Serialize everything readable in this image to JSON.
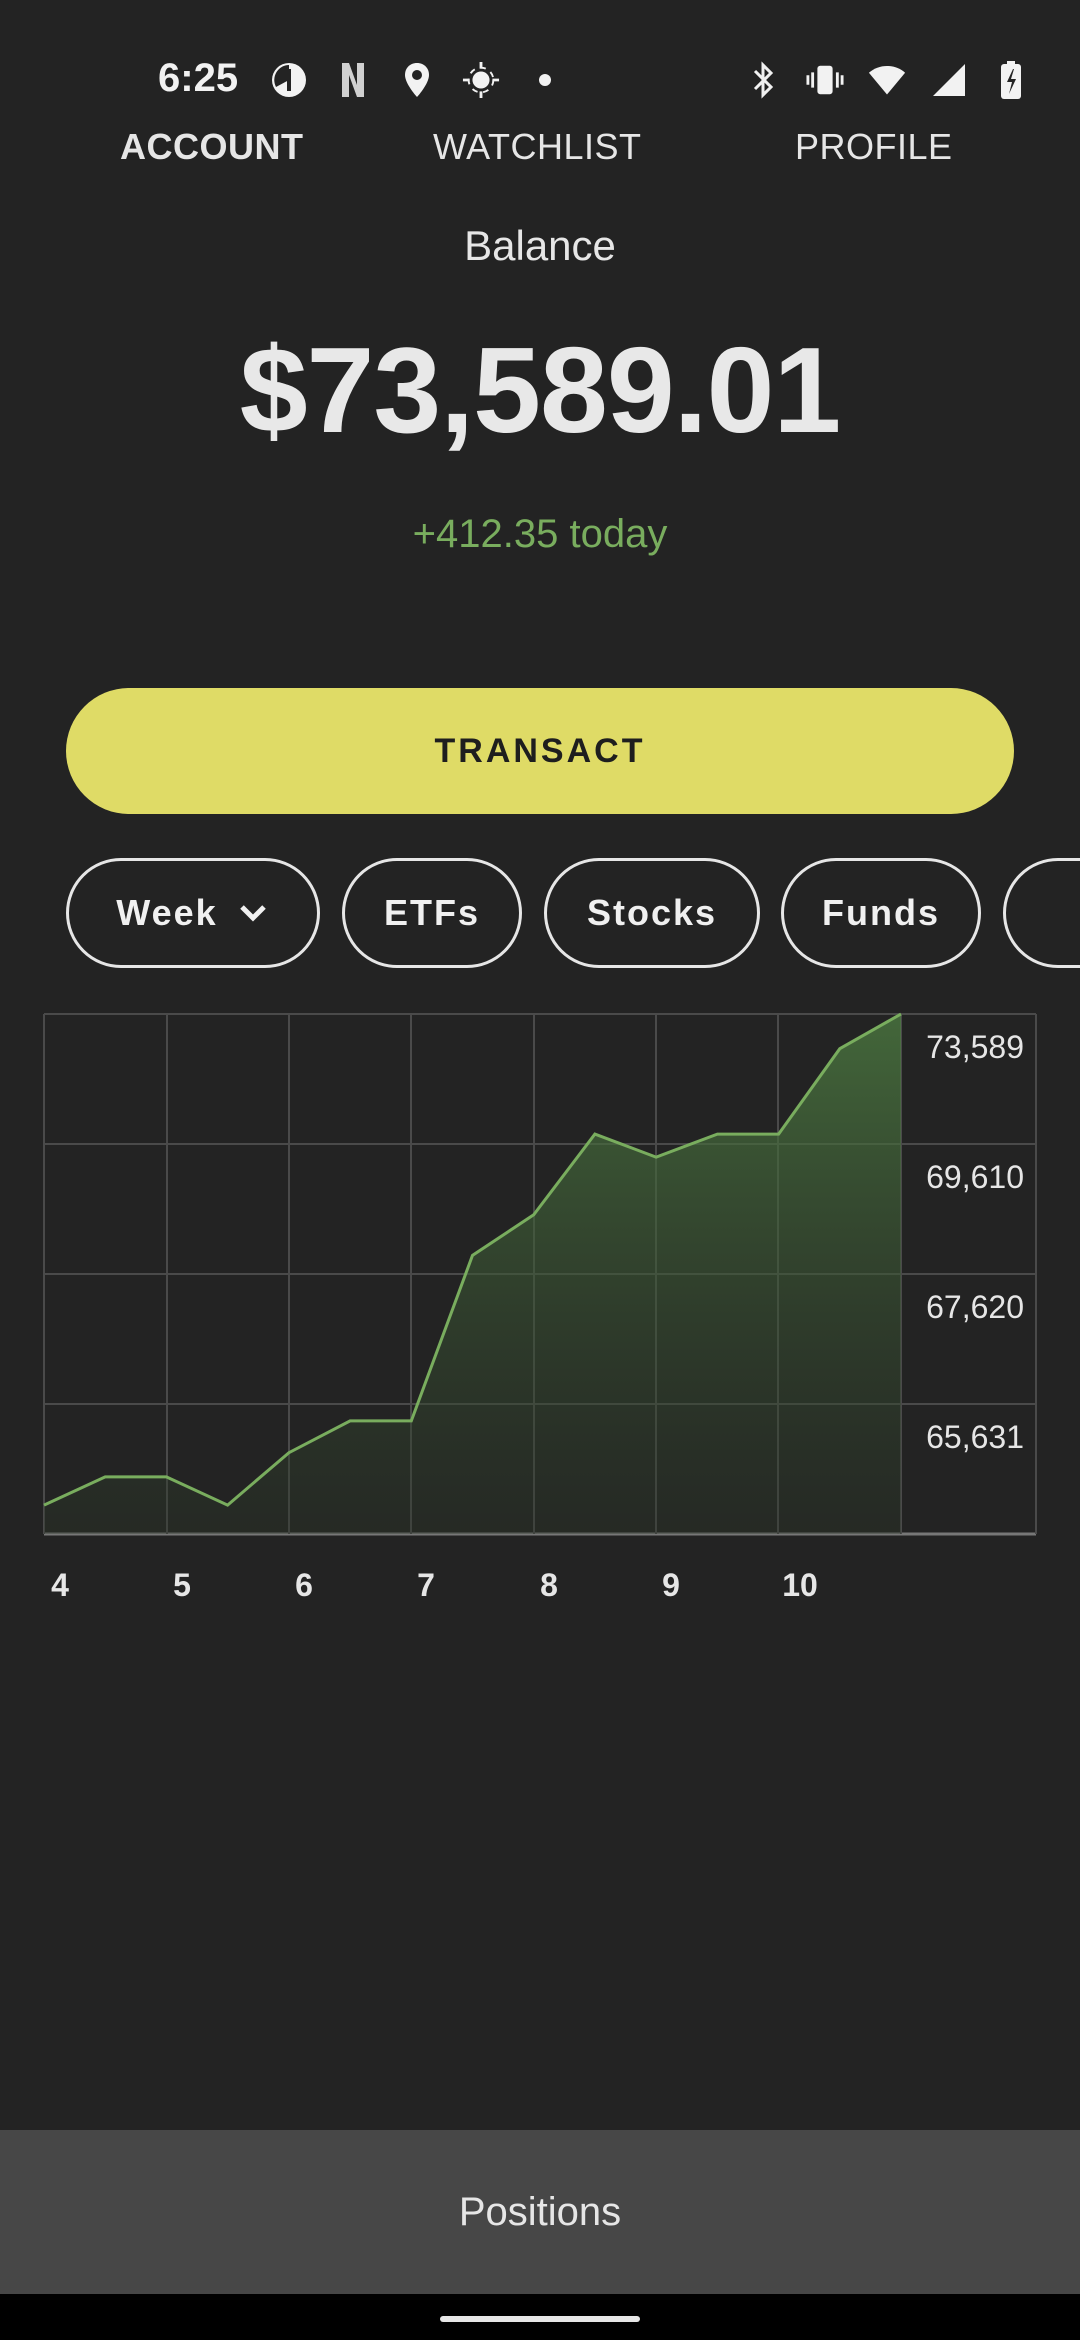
{
  "status_bar": {
    "time": "6:25",
    "left_icons": [
      "pie-chart-icon",
      "netflix-icon",
      "location-pin-icon",
      "gps-icon",
      "dot-icon"
    ],
    "right_icons": [
      "bluetooth-icon",
      "vibrate-icon",
      "wifi-icon",
      "signal-icon",
      "battery-charging-icon"
    ]
  },
  "tabs": [
    {
      "label": "ACCOUNT",
      "active": true
    },
    {
      "label": "WATCHLIST",
      "active": false
    },
    {
      "label": "PROFILE",
      "active": false
    }
  ],
  "balance": {
    "label": "Balance",
    "value": "$73,589.01",
    "change": "+412.35 today"
  },
  "transact_label": "TRANSACT",
  "filters": {
    "period": "Week",
    "chips": [
      "ETFs",
      "Stocks",
      "Funds"
    ]
  },
  "colors": {
    "background": "#232323",
    "accent": "#dfdb66",
    "positive": "#79ad5e",
    "bottom_bar": "#474747"
  },
  "chart_data": {
    "type": "area",
    "x_ticks": [
      "4",
      "5",
      "6",
      "7",
      "8",
      "9",
      "10"
    ],
    "y_ticks": [
      "73,589",
      "69,610",
      "67,620",
      "65,631"
    ],
    "grid": true,
    "values": [
      63400,
      63880,
      63880,
      63400,
      64290,
      64830,
      64830,
      67640,
      68330,
      69700,
      69310,
      69700,
      69700,
      71150,
      71740
    ]
  },
  "bottom_bar_label": "Positions"
}
